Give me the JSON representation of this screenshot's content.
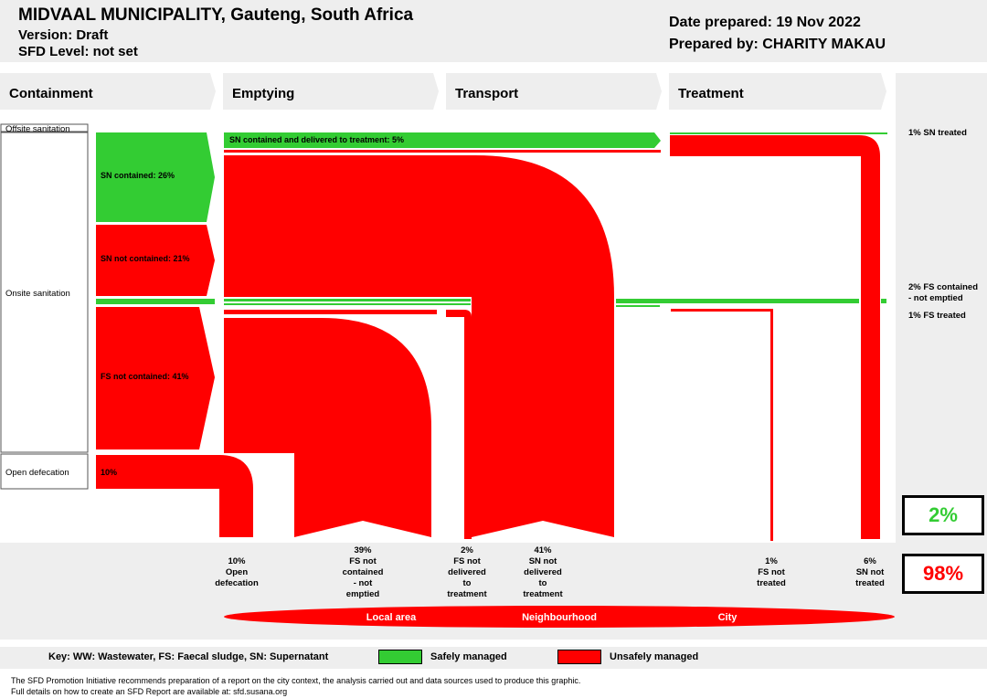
{
  "header": {
    "title": "MIDVAAL MUNICIPALITY, Gauteng, South Africa",
    "version": "Version: Draft",
    "sfd_level": "SFD Level: not set",
    "date_prepared": "Date prepared: 19 Nov 2022",
    "prepared_by": "Prepared by: CHARITY MAKAU"
  },
  "stages": [
    "Containment",
    "Emptying",
    "Transport",
    "Treatment"
  ],
  "containment_labels": {
    "offsite": "Offsite sanitation",
    "onsite": "Onsite sanitation",
    "open_defecation": "Open defecation"
  },
  "flow_labels": {
    "sn_contained": "SN contained: 26%",
    "sn_not_contained": "SN not contained: 21%",
    "fs_not_contained": "FS not contained: 41%",
    "open_def": "10%",
    "sn_delivered": "SN contained and delivered to treatment: 5%"
  },
  "right_labels": {
    "sn_treated": "1% SN treated",
    "fs_contained_line1": "2% FS contained",
    "fs_contained_line2": "- not emptied",
    "fs_treated": "1% FS treated"
  },
  "outcomes": [
    [
      "10%",
      "Open",
      "defecation"
    ],
    [
      "39%",
      "FS not",
      "contained",
      "- not",
      "emptied"
    ],
    [
      "2%",
      "FS not",
      "delivered",
      "to",
      "treatment"
    ],
    [
      "41%",
      "SN not",
      "delivered",
      "to",
      "treatment"
    ],
    [
      "1%",
      "FS not",
      "treated"
    ],
    [
      "6%",
      "SN not",
      "treated"
    ]
  ],
  "totals": {
    "safe": "2%",
    "unsafe": "98%"
  },
  "areas": [
    "Local area",
    "Neighbourhood",
    "City"
  ],
  "key": {
    "text": "Key: WW: Wastewater, FS: Faecal sludge, SN: Supernatant",
    "safe": "Safely managed",
    "unsafe": "Unsafely managed"
  },
  "footnote": {
    "line1": "The SFD Promotion Initiative recommends preparation of a report on the city context, the analysis carried out and data sources used to produce this graphic.",
    "line2": "Full details on how to create an SFD Report are available at: sfd.susana.org"
  },
  "colors": {
    "safe": "#33cc33",
    "unsafe": "#ff0000",
    "panel": "#eeeeee"
  }
}
